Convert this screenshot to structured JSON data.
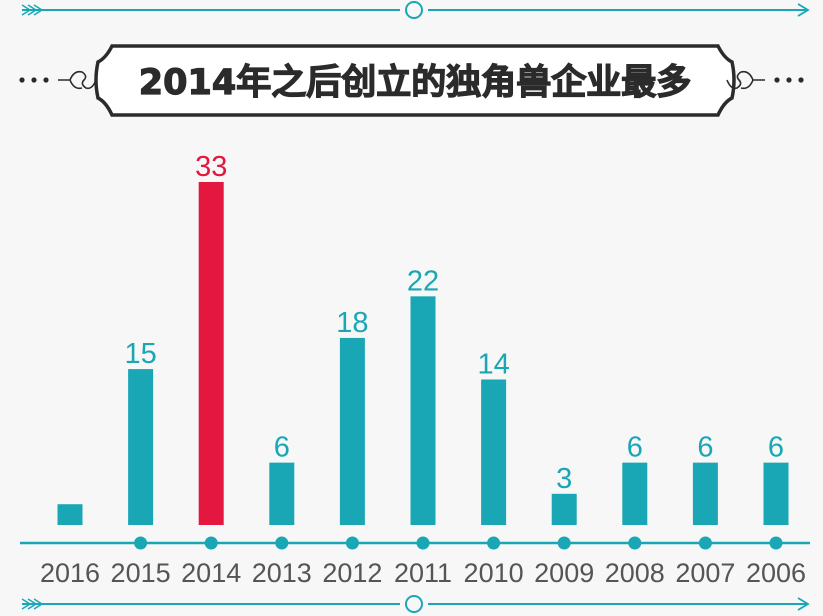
{
  "colors": {
    "background": "#f7f7f7",
    "bar": "#1aa7b5",
    "highlight": "#e3173f",
    "axis": "#1aa7b5",
    "title_text": "#2b2b2b",
    "tick_text": "#555555"
  },
  "chart_data": {
    "type": "bar",
    "title": "2014年之后创立的独角兽企业最多",
    "xlabel": "",
    "ylabel": "",
    "categories": [
      "2016",
      "2015",
      "2014",
      "2013",
      "2012",
      "2011",
      "2010",
      "2009",
      "2008",
      "2007",
      "2006"
    ],
    "values": [
      2,
      15,
      33,
      6,
      18,
      22,
      14,
      3,
      6,
      6,
      6
    ],
    "value_labels": [
      "",
      "15",
      "33",
      "6",
      "18",
      "22",
      "14",
      "3",
      "6",
      "6",
      "6"
    ],
    "highlight_category": "2014",
    "ylim": [
      0,
      33
    ],
    "grid": false,
    "legend": "none"
  }
}
